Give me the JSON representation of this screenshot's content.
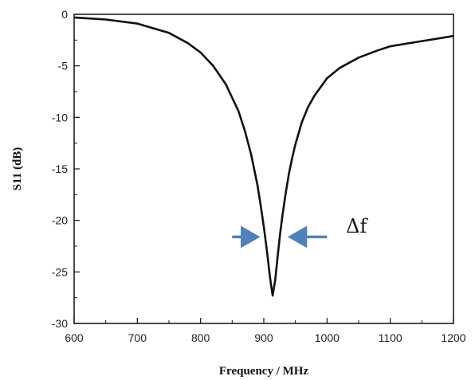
{
  "chart_data": {
    "type": "line",
    "title": "",
    "xlabel": "Frequency / MHz",
    "ylabel": "S11 (dB)",
    "xlim": [
      600,
      1200
    ],
    "ylim": [
      -30,
      0
    ],
    "xticks": [
      600,
      700,
      800,
      900,
      1000,
      1100,
      1200
    ],
    "yticks": [
      0,
      -5,
      -10,
      -15,
      -20,
      -25,
      -30
    ],
    "xtick_labels": [
      "600",
      "700",
      "800",
      "900",
      "1000",
      "1100",
      "1200"
    ],
    "ytick_labels": [
      "0",
      "-5",
      "-10",
      "-15",
      "-20",
      "-25",
      "-30"
    ],
    "grid": false,
    "legend": "none",
    "series": [
      {
        "color": "#111111",
        "x": [
          600,
          650,
          700,
          750,
          780,
          800,
          820,
          840,
          860,
          870,
          880,
          890,
          895,
          900,
          905,
          910,
          914,
          918,
          922,
          926,
          930,
          935,
          940,
          945,
          950,
          960,
          970,
          980,
          1000,
          1020,
          1050,
          1080,
          1100,
          1150,
          1200
        ],
        "y": [
          -0.3,
          -0.5,
          -0.9,
          -1.8,
          -2.8,
          -3.7,
          -5.0,
          -6.8,
          -9.4,
          -11.3,
          -13.6,
          -16.6,
          -18.5,
          -20.6,
          -23.0,
          -25.6,
          -27.3,
          -25.8,
          -23.4,
          -21.2,
          -19.3,
          -17.2,
          -15.4,
          -13.9,
          -12.6,
          -10.5,
          -9.0,
          -7.9,
          -6.2,
          -5.2,
          -4.2,
          -3.5,
          -3.1,
          -2.6,
          -2.1
        ]
      }
    ],
    "annotations": [
      {
        "text": "Δf",
        "x": 1030,
        "y": -21.2
      }
    ],
    "arrows": [
      {
        "from": [
          850,
          -21.6
        ],
        "to": [
          890,
          -21.6
        ],
        "color": "#4f81bd"
      },
      {
        "from": [
          1000,
          -21.6
        ],
        "to": [
          942,
          -21.6
        ],
        "color": "#4f81bd"
      }
    ]
  }
}
